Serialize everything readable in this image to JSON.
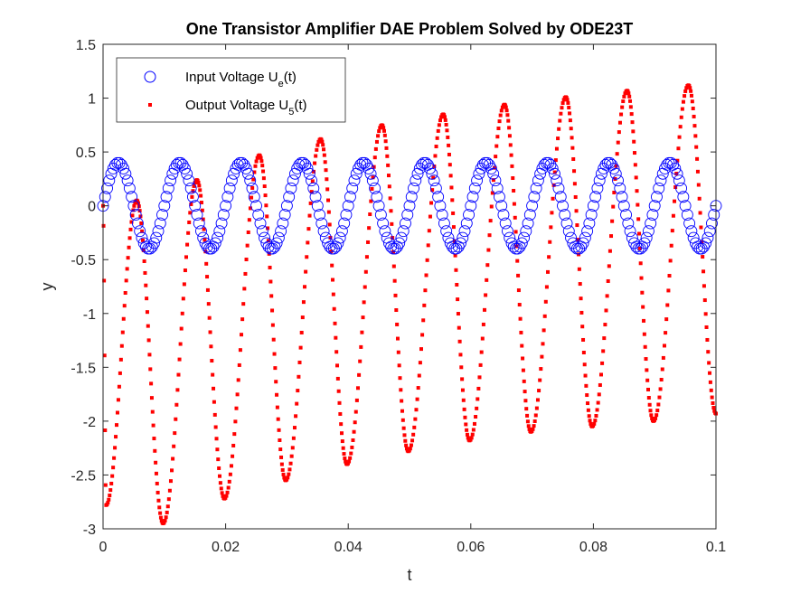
{
  "chart_data": {
    "type": "scatter",
    "title": "One Transistor Amplifier DAE Problem Solved by ODE23T",
    "xlabel": "t",
    "ylabel": "y",
    "xlim": [
      0,
      0.1
    ],
    "ylim": [
      -3,
      1.5
    ],
    "xticks": [
      0,
      0.02,
      0.04,
      0.06,
      0.08,
      0.1
    ],
    "xtick_labels": [
      "0",
      "0.02",
      "0.04",
      "0.06",
      "0.08",
      "0.1"
    ],
    "yticks": [
      -3,
      -2.5,
      -2,
      -1.5,
      -1,
      -0.5,
      0,
      0.5,
      1,
      1.5
    ],
    "ytick_labels": [
      "-3",
      "-2.5",
      "-2",
      "-1.5",
      "-1",
      "-0.5",
      "0",
      "0.5",
      "1",
      "1.5"
    ],
    "grid": false,
    "legend_position": "top-left",
    "series": [
      {
        "name_main": "Input Voltage U",
        "name_sub": "e",
        "name_tail": "(t)",
        "marker": "circle-open",
        "color": "#0000ff",
        "function": "0.4*sin(200*pi*t)",
        "amplitude": 0.4,
        "frequency_hz": 100,
        "t_start": 0,
        "t_end": 0.1,
        "points": 300
      },
      {
        "name_main": "Output Voltage U",
        "name_sub": "5",
        "name_tail": "(t)",
        "marker": "point",
        "color": "#ff0000",
        "points_per_cycle": 70,
        "peaks": [
          {
            "t": 0.0055,
            "y": 0.05
          },
          {
            "t": 0.0153,
            "y": 0.24
          },
          {
            "t": 0.0255,
            "y": 0.47
          },
          {
            "t": 0.0355,
            "y": 0.62
          },
          {
            "t": 0.0455,
            "y": 0.75
          },
          {
            "t": 0.0555,
            "y": 0.85
          },
          {
            "t": 0.0655,
            "y": 0.94
          },
          {
            "t": 0.0755,
            "y": 1.01
          },
          {
            "t": 0.0855,
            "y": 1.07
          },
          {
            "t": 0.0955,
            "y": 1.12
          }
        ],
        "troughs": [
          {
            "t": 0.0005,
            "y": -2.78
          },
          {
            "t": 0.0098,
            "y": -2.95
          },
          {
            "t": 0.0198,
            "y": -2.72
          },
          {
            "t": 0.0298,
            "y": -2.55
          },
          {
            "t": 0.0398,
            "y": -2.4
          },
          {
            "t": 0.0498,
            "y": -2.28
          },
          {
            "t": 0.0598,
            "y": -2.18
          },
          {
            "t": 0.0698,
            "y": -2.1
          },
          {
            "t": 0.0798,
            "y": -2.05
          },
          {
            "t": 0.0898,
            "y": -2.0
          },
          {
            "t": 0.1,
            "y": -1.93
          }
        ]
      }
    ]
  }
}
